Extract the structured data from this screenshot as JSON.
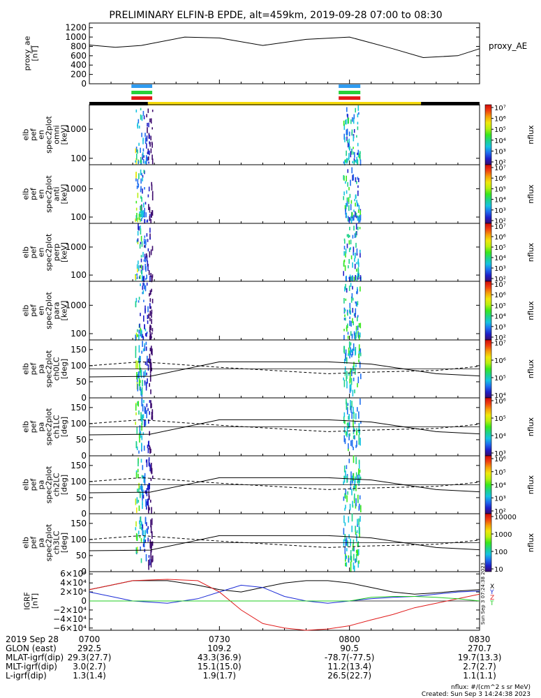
{
  "title": "PRELIMINARY ELFIN-B EPDE, alt=459km, 2019-09-28 07:00 to 08:30",
  "colors": {
    "frame": "#000000",
    "blue_bar": "#2f9bf0",
    "green_bar": "#25d23a",
    "red_bar": "#e41a1a",
    "yellow_bar": "#f5d90a",
    "igrf_x": "#000000",
    "igrf_y": "#1a2ad6",
    "igrf_z": "#e01a1a",
    "igrf_t": "#22cc22"
  },
  "chart_data": [
    {
      "type": "line",
      "panel": "proxy_ae",
      "ylabel": [
        "proxy_ae",
        "[nT]"
      ],
      "legend": "proxy_AE",
      "ylim": [
        0,
        1300
      ],
      "yticks": [
        "0",
        "200",
        "400",
        "600",
        "800",
        "1000",
        "1200"
      ],
      "x_minutes": [
        0,
        6,
        12,
        22,
        30,
        40,
        50,
        60,
        70,
        77,
        85,
        90
      ],
      "values": [
        830,
        780,
        820,
        1000,
        980,
        820,
        950,
        1000,
        750,
        560,
        600,
        750
      ]
    },
    {
      "type": "heatmap",
      "panel": "omni",
      "ylabel": [
        "elb",
        "pef",
        "en",
        "spec2plot",
        "omni",
        "[keV]"
      ],
      "ylim": [
        60,
        7000
      ],
      "yticks": [
        "100",
        "1000"
      ],
      "colorbar": {
        "label": "nflux",
        "ticks": [
          "10²",
          "10³",
          "10⁴",
          "10⁵",
          "10⁶",
          "10⁷"
        ]
      }
    },
    {
      "type": "heatmap",
      "panel": "anti",
      "ylabel": [
        "elb",
        "pef",
        "en",
        "spec2plot",
        "anti",
        "[keV]"
      ],
      "ylim": [
        60,
        7000
      ],
      "yticks": [
        "100",
        "1000"
      ],
      "colorbar": {
        "label": "nflux",
        "ticks": [
          "10²",
          "10³",
          "10⁴",
          "10⁵",
          "10⁶",
          "10⁷"
        ]
      }
    },
    {
      "type": "heatmap",
      "panel": "perp",
      "ylabel": [
        "elb",
        "pef",
        "en",
        "spec2plot",
        "perp",
        "[keV]"
      ],
      "ylim": [
        60,
        7000
      ],
      "yticks": [
        "100",
        "1000"
      ],
      "colorbar": {
        "label": "nflux",
        "ticks": [
          "10²",
          "10³",
          "10⁴",
          "10⁵",
          "10⁶",
          "10⁷"
        ]
      }
    },
    {
      "type": "heatmap",
      "panel": "para",
      "ylabel": [
        "elb",
        "pef",
        "en",
        "spec2plot",
        "para",
        "[keV]"
      ],
      "ylim": [
        60,
        7000
      ],
      "yticks": [
        "100",
        "1000"
      ],
      "colorbar": {
        "label": "nflux",
        "ticks": [
          "10²",
          "10³",
          "10⁴",
          "10⁵",
          "10⁶",
          "10⁷"
        ]
      }
    },
    {
      "type": "heatmap",
      "panel": "ch0LC",
      "ylabel": [
        "elb",
        "pef",
        "pa",
        "spec2plot",
        "ch0LC",
        "[deg]"
      ],
      "ylim": [
        0,
        180
      ],
      "yticks": [
        "0",
        "50",
        "100",
        "150"
      ],
      "colorbar": {
        "label": "nflux",
        "ticks": [
          "10⁴",
          "10⁵",
          "10⁶",
          "10⁷"
        ]
      }
    },
    {
      "type": "heatmap",
      "panel": "ch1LC",
      "ylabel": [
        "elb",
        "pef",
        "pa",
        "spec2plot",
        "ch1LC",
        "[deg]"
      ],
      "ylim": [
        0,
        180
      ],
      "yticks": [
        "0",
        "50",
        "100",
        "150"
      ],
      "colorbar": {
        "label": "nflux",
        "ticks": [
          "10³",
          "10⁴",
          "10⁵",
          "10⁶"
        ]
      }
    },
    {
      "type": "heatmap",
      "panel": "ch2LC",
      "ylabel": [
        "elb",
        "pef",
        "pa",
        "spec2plot",
        "ch2LC",
        "[deg]"
      ],
      "ylim": [
        0,
        180
      ],
      "yticks": [
        "0",
        "50",
        "100",
        "150"
      ],
      "colorbar": {
        "label": "nflux",
        "ticks": [
          "10²",
          "10³",
          "10⁴",
          "10⁵",
          "10⁶"
        ]
      }
    },
    {
      "type": "heatmap",
      "panel": "ch3LC",
      "ylabel": [
        "elb",
        "pef",
        "pa",
        "spec2plot",
        "ch3LC",
        "[deg]"
      ],
      "ylim": [
        0,
        180
      ],
      "yticks": [
        "0",
        "50",
        "100",
        "150"
      ],
      "colorbar": {
        "label": "nflux",
        "ticks": [
          "10",
          "100",
          "1000",
          "10000"
        ]
      }
    },
    {
      "type": "line",
      "panel": "igrf",
      "ylabel": [
        "IGRF",
        "[nT]"
      ],
      "legend": [
        "X",
        "Y",
        "Z",
        "T"
      ],
      "ylim": [
        -65000,
        65000
      ],
      "yticks": [
        "−6×10⁴",
        "−4×10⁴",
        "−2×10⁴",
        "0",
        "2×10⁴",
        "4×10⁴",
        "6×10⁴"
      ],
      "side_note": "Sun Sep  3 07:24:38 2023",
      "x_minutes": [
        0,
        5,
        10,
        18,
        25,
        30,
        35,
        40,
        45,
        50,
        55,
        60,
        65,
        70,
        75,
        80,
        85,
        90
      ],
      "series": [
        {
          "name": "X",
          "values": [
            25000,
            35000,
            45000,
            45000,
            35000,
            25000,
            20000,
            30000,
            40000,
            45000,
            45000,
            40000,
            30000,
            20000,
            15000,
            18000,
            22000,
            25000
          ]
        },
        {
          "name": "Y",
          "values": [
            20000,
            10000,
            0,
            -5000,
            5000,
            20000,
            35000,
            30000,
            10000,
            0,
            -5000,
            0,
            5000,
            8000,
            10000,
            15000,
            20000,
            22000
          ]
        },
        {
          "name": "Z",
          "values": [
            25000,
            35000,
            45000,
            48000,
            45000,
            20000,
            -20000,
            -50000,
            -60000,
            -65000,
            -62000,
            -55000,
            -42000,
            -30000,
            -15000,
            -5000,
            5000,
            15000
          ]
        },
        {
          "name": "T",
          "values": [
            0,
            0,
            0,
            0,
            0,
            0,
            0,
            0,
            0,
            0,
            0,
            0,
            8000,
            10000,
            10000,
            8000,
            5000,
            0
          ]
        }
      ]
    }
  ],
  "footer": {
    "date_label": "2019 Sep 28",
    "time_ticks": [
      "0700",
      "0730",
      "0800",
      "0830"
    ],
    "rows": [
      {
        "label": "GLON (east)",
        "values": [
          "292.5",
          "109.2",
          "90.5",
          "270.7"
        ]
      },
      {
        "label": "MLAT-igrf(dip)",
        "values": [
          "29.3(27.7)",
          "43.3(36.9)",
          "-78.7(-77.5)",
          "19.7(13.3)"
        ]
      },
      {
        "label": "MLT-igrf(dip)",
        "values": [
          "3.0(2.7)",
          "15.1(15.0)",
          "11.2(13.4)",
          "2.7(2.7)"
        ]
      },
      {
        "label": "L-igrf(dip)",
        "values": [
          "1.3(1.4)",
          "1.9(1.7)",
          "26.5(22.7)",
          "1.1(1.1)"
        ]
      }
    ],
    "units_note": "nflux: #/(cm^2 s sr MeV)",
    "created_note": "Created: Sun Sep  3 14:24:38 2023"
  }
}
